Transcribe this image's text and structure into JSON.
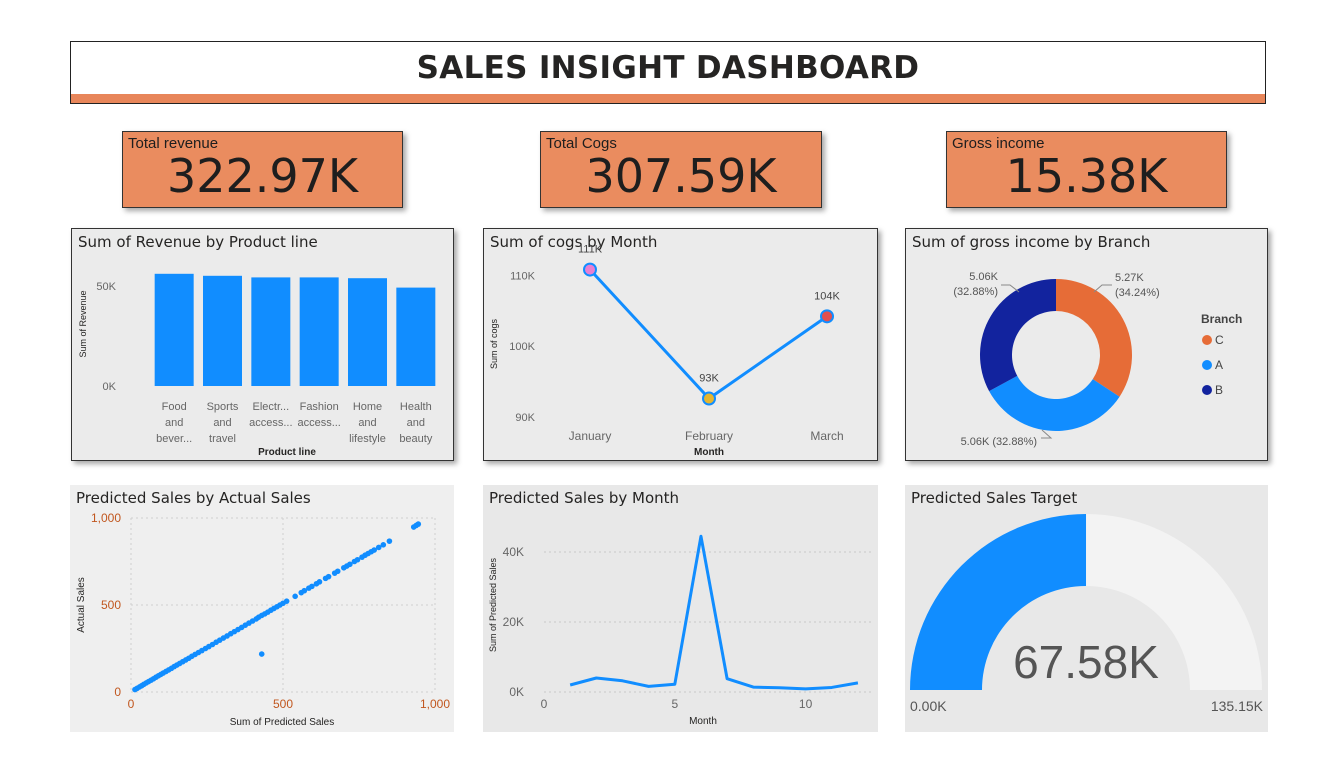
{
  "header": {
    "title": "SALES INSIGHT DASHBOARD"
  },
  "colors": {
    "accent": "#E8865A",
    "kpi": "#EA8C5F",
    "bar": "#118DFF",
    "branch_c": "#E66C37",
    "branch_a": "#118DFF",
    "branch_b": "#12239E",
    "gauge_rest": "#F3F3F3"
  },
  "kpis": [
    {
      "label": "Total revenue",
      "value": "322.97K"
    },
    {
      "label": "Total Cogs",
      "value": "307.59K"
    },
    {
      "label": "Gross income",
      "value": "15.38K"
    }
  ],
  "chart_data": [
    {
      "type": "bar",
      "title": "Sum of Revenue by Product line",
      "xlabel": "Product line",
      "ylabel": "Sum of Revenue",
      "categories": [
        [
          "Food",
          "and",
          "bever..."
        ],
        [
          "Sports",
          "and",
          "travel"
        ],
        [
          "Electr...",
          "access..."
        ],
        [
          "Fashion",
          "access..."
        ],
        [
          "Home",
          "and",
          "lifestyle"
        ],
        [
          "Health",
          "and",
          "beauty"
        ]
      ],
      "values": [
        56100,
        55100,
        54300,
        54300,
        53900,
        49200
      ],
      "ylim": [
        0,
        60000
      ],
      "yticks": [
        {
          "value": 0,
          "label": "0K"
        },
        {
          "value": 50000,
          "label": "50K"
        }
      ]
    },
    {
      "type": "line",
      "title": "Sum of cogs by Month",
      "xlabel": "Month",
      "ylabel": "Sum of cogs",
      "categories": [
        "January",
        "February",
        "March"
      ],
      "values": [
        110800,
        92600,
        104200
      ],
      "data_labels": [
        "111K",
        "93K",
        "104K"
      ],
      "marker_colors": [
        "#E87FD2",
        "#E5B52F",
        "#E05050"
      ],
      "ylim": [
        89000,
        113000
      ],
      "yticks": [
        {
          "value": 90000,
          "label": "90K"
        },
        {
          "value": 100000,
          "label": "100K"
        },
        {
          "value": 110000,
          "label": "110K"
        }
      ]
    },
    {
      "type": "pie",
      "title": "Sum of gross income by Branch",
      "legend_title": "Branch",
      "legend_position": "right",
      "slices": [
        {
          "name": "C",
          "value": 5270,
          "label": "5.27K",
          "pct": "(34.24%)",
          "color": "#E66C37"
        },
        {
          "name": "A",
          "value": 5060,
          "label": "5.06K (32.88%)",
          "color": "#118DFF"
        },
        {
          "name": "B",
          "value": 5060,
          "label": "5.06K",
          "pct": "(32.88%)",
          "color": "#12239E"
        }
      ]
    },
    {
      "type": "scatter",
      "title": "Predicted Sales by Actual Sales",
      "xlabel": "Sum of Predicted Sales",
      "ylabel": "Actual Sales",
      "xlim": [
        0,
        1000
      ],
      "ylim": [
        0,
        1000
      ],
      "xticks": [
        {
          "value": 0,
          "label": "0"
        },
        {
          "value": 500,
          "label": "500"
        },
        {
          "value": 1000,
          "label": "1,000"
        }
      ],
      "yticks": [
        {
          "value": 0,
          "label": "0"
        },
        {
          "value": 500,
          "label": "500"
        },
        {
          "value": 1000,
          "label": "1,000"
        }
      ],
      "points": [
        [
          13,
          14
        ],
        [
          20,
          21
        ],
        [
          28,
          29
        ],
        [
          35,
          36
        ],
        [
          42,
          44
        ],
        [
          50,
          52
        ],
        [
          58,
          60
        ],
        [
          66,
          68
        ],
        [
          74,
          76
        ],
        [
          82,
          85
        ],
        [
          90,
          93
        ],
        [
          98,
          101
        ],
        [
          106,
          109
        ],
        [
          115,
          118
        ],
        [
          124,
          127
        ],
        [
          133,
          136
        ],
        [
          142,
          146
        ],
        [
          151,
          155
        ],
        [
          160,
          164
        ],
        [
          170,
          174
        ],
        [
          180,
          184
        ],
        [
          190,
          194
        ],
        [
          200,
          205
        ],
        [
          211,
          216
        ],
        [
          222,
          227
        ],
        [
          233,
          238
        ],
        [
          245,
          250
        ],
        [
          256,
          261
        ],
        [
          268,
          273
        ],
        [
          280,
          286
        ],
        [
          292,
          298
        ],
        [
          304,
          310
        ],
        [
          316,
          322
        ],
        [
          328,
          335
        ],
        [
          340,
          347
        ],
        [
          352,
          359
        ],
        [
          364,
          371
        ],
        [
          376,
          384
        ],
        [
          388,
          396
        ],
        [
          400,
          408
        ],
        [
          412,
          420
        ],
        [
          420,
          430
        ],
        [
          430,
          440
        ],
        [
          440,
          449
        ],
        [
          450,
          459
        ],
        [
          460,
          470
        ],
        [
          470,
          480
        ],
        [
          480,
          490
        ],
        [
          490,
          500
        ],
        [
          500,
          510
        ],
        [
          512,
          522
        ],
        [
          430,
          218
        ],
        [
          540,
          550
        ],
        [
          560,
          571
        ],
        [
          570,
          582
        ],
        [
          585,
          597
        ],
        [
          595,
          607
        ],
        [
          610,
          622
        ],
        [
          620,
          633
        ],
        [
          640,
          653
        ],
        [
          650,
          663
        ],
        [
          670,
          683
        ],
        [
          680,
          694
        ],
        [
          700,
          714
        ],
        [
          710,
          724
        ],
        [
          720,
          734
        ],
        [
          735,
          750
        ],
        [
          745,
          760
        ],
        [
          760,
          775
        ],
        [
          770,
          786
        ],
        [
          780,
          796
        ],
        [
          790,
          806
        ],
        [
          800,
          816
        ],
        [
          815,
          831
        ],
        [
          830,
          846
        ],
        [
          850,
          867
        ],
        [
          930,
          948
        ],
        [
          938,
          957
        ],
        [
          945,
          965
        ]
      ]
    },
    {
      "type": "line",
      "title": "Predicted Sales by Month",
      "xlabel": "Month",
      "ylabel": "Sum of Predicted Sales",
      "x": [
        1,
        2,
        3,
        4,
        5,
        6,
        7,
        8,
        9,
        10,
        11,
        12
      ],
      "values": [
        2000,
        4000,
        3200,
        1600,
        2200,
        44500,
        3800,
        1400,
        1200,
        900,
        1300,
        2600
      ],
      "xlim": [
        0,
        12.5
      ],
      "ylim": [
        0,
        48000
      ],
      "xticks": [
        {
          "value": 0,
          "label": "0"
        },
        {
          "value": 5,
          "label": "5"
        },
        {
          "value": 10,
          "label": "10"
        }
      ],
      "yticks": [
        {
          "value": 0,
          "label": "0K"
        },
        {
          "value": 20000,
          "label": "20K"
        },
        {
          "value": 40000,
          "label": "40K"
        }
      ]
    },
    {
      "type": "gauge",
      "title": "Predicted Sales Target",
      "value": 67580,
      "min": 0,
      "max": 135150,
      "value_label": "67.58K",
      "min_label": "0.00K",
      "max_label": "135.15K"
    }
  ]
}
